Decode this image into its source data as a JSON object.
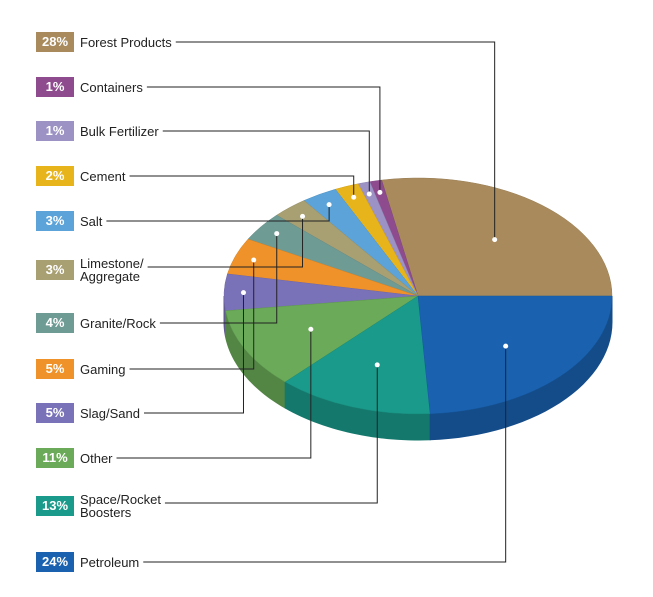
{
  "chart_data": {
    "type": "pie",
    "categories": [
      "Forest Products",
      "Containers",
      "Bulk Fertilizer",
      "Cement",
      "Salt",
      "Limestone/\nAggregate",
      "Granite/Rock",
      "Gaming",
      "Slag/Sand",
      "Other",
      "Space/Rocket\nBoosters",
      "Petroleum"
    ],
    "values": [
      28,
      1,
      1,
      2,
      3,
      3,
      4,
      5,
      5,
      11,
      13,
      24
    ],
    "value_labels": [
      "28%",
      "1%",
      "1%",
      "2%",
      "3%",
      "3%",
      "4%",
      "5%",
      "5%",
      "11%",
      "13%",
      "24%"
    ],
    "colors": [
      "#a88a5c",
      "#8e4c8e",
      "#9c92c4",
      "#e8b41c",
      "#5ba3d8",
      "#a89f72",
      "#6f9b95",
      "#f0922a",
      "#7a72b8",
      "#6aaa58",
      "#1a9a8a",
      "#1a62b0"
    ]
  }
}
